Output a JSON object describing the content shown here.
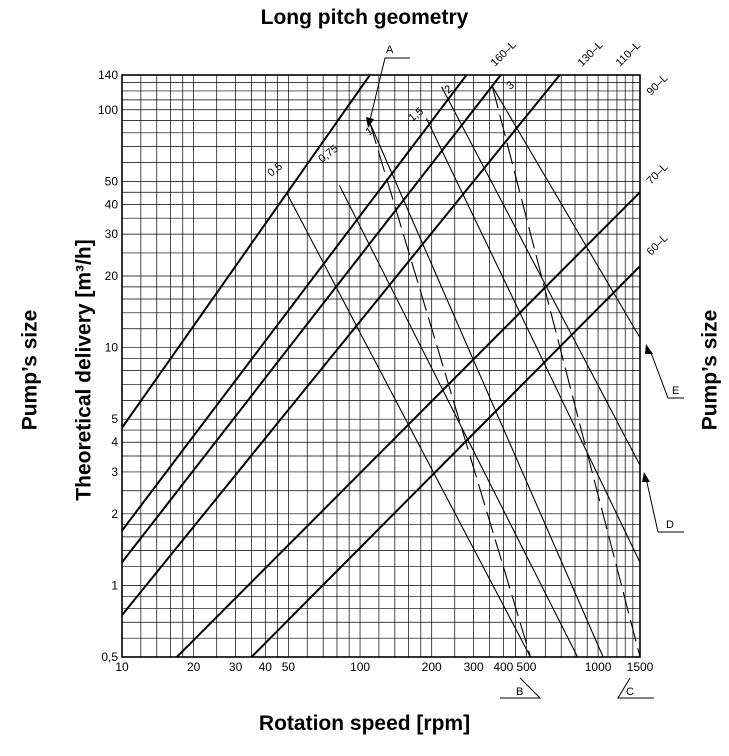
{
  "chart_data": {
    "type": "line",
    "title": "Long pitch geometry",
    "xlabel": "Rotation speed [rpm]",
    "ylabel": "Theoretical delivery [m³/h]",
    "side_label_left": "Pump’s size",
    "side_label_right": "Pump’s size",
    "x_scale": "log",
    "y_scale": "log",
    "xlim": [
      10,
      1500
    ],
    "ylim": [
      0.5,
      140
    ],
    "grid": true,
    "x_ticks": [
      {
        "value": 10,
        "label": "10"
      },
      {
        "value": 20,
        "label": "20"
      },
      {
        "value": 30,
        "label": "30"
      },
      {
        "value": 40,
        "label": "40"
      },
      {
        "value": 50,
        "label": "50"
      },
      {
        "value": 100,
        "label": "100"
      },
      {
        "value": 200,
        "label": "200"
      },
      {
        "value": 300,
        "label": "300"
      },
      {
        "value": 400,
        "label": "400"
      },
      {
        "value": 500,
        "label": "500"
      },
      {
        "value": 1000,
        "label": "1000"
      },
      {
        "value": 1500,
        "label": "1500"
      }
    ],
    "y_ticks": [
      {
        "value": 0.5,
        "label": "0,5"
      },
      {
        "value": 1,
        "label": "1"
      },
      {
        "value": 2,
        "label": "2"
      },
      {
        "value": 3,
        "label": "3"
      },
      {
        "value": 4,
        "label": "4"
      },
      {
        "value": 5,
        "label": "5"
      },
      {
        "value": 10,
        "label": "10"
      },
      {
        "value": 20,
        "label": "20"
      },
      {
        "value": 30,
        "label": "30"
      },
      {
        "value": 40,
        "label": "40"
      },
      {
        "value": 50,
        "label": "50"
      },
      {
        "value": 100,
        "label": "100"
      },
      {
        "value": 140,
        "label": "140"
      }
    ],
    "x_grid": [
      10,
      12,
      14,
      16,
      18,
      20,
      25,
      30,
      35,
      40,
      45,
      50,
      60,
      70,
      80,
      90,
      100,
      120,
      140,
      160,
      180,
      200,
      250,
      300,
      350,
      400,
      450,
      500,
      600,
      700,
      800,
      900,
      1000,
      1100,
      1200,
      1300,
      1400,
      1500
    ],
    "y_grid": [
      0.5,
      0.6,
      0.7,
      0.8,
      0.9,
      1,
      1.2,
      1.4,
      1.6,
      1.8,
      2,
      2.5,
      3,
      3.5,
      4,
      4.5,
      5,
      6,
      7,
      8,
      9,
      10,
      12,
      14,
      16,
      18,
      20,
      25,
      30,
      35,
      40,
      45,
      50,
      60,
      70,
      80,
      90,
      100,
      110,
      120,
      130,
      140
    ],
    "series": [
      {
        "name": "160–L",
        "points": [
          [
            10,
            4.6
          ],
          [
            110,
            140
          ]
        ]
      },
      {
        "name": "130–L",
        "points": [
          [
            10,
            1.7
          ],
          [
            280,
            140
          ]
        ]
      },
      {
        "name": "110–L",
        "points": [
          [
            10,
            1.25
          ],
          [
            390,
            140
          ]
        ]
      },
      {
        "name": "90–L",
        "points": [
          [
            10,
            0.75
          ],
          [
            690,
            140
          ]
        ]
      },
      {
        "name": "70–L",
        "points": [
          [
            17,
            0.5
          ],
          [
            1500,
            45
          ]
        ]
      },
      {
        "name": "60–L",
        "points": [
          [
            35,
            0.5
          ],
          [
            1500,
            22
          ]
        ]
      }
    ],
    "viscosity_lines": [
      {
        "name": "0,5",
        "points": [
          [
            49,
            45
          ],
          [
            520,
            0.5
          ]
        ]
      },
      {
        "name": "0,75",
        "points": [
          [
            82,
            48
          ],
          [
            820,
            0.5
          ]
        ]
      },
      {
        "name": "1",
        "points": [
          [
            110,
            88
          ],
          [
            1050,
            0.5
          ]
        ]
      },
      {
        "name": "1,5",
        "points": [
          [
            190,
            92
          ],
          [
            1500,
            1.25
          ]
        ]
      },
      {
        "name": "2",
        "points": [
          [
            220,
            125
          ],
          [
            1500,
            3.2
          ]
        ]
      },
      {
        "name": "3",
        "points": [
          [
            360,
            125
          ],
          [
            1500,
            11
          ]
        ]
      }
    ],
    "dashed_lines": [
      {
        "points": [
          [
            110,
            88
          ],
          [
            520,
            0.5
          ]
        ]
      },
      {
        "points": [
          [
            360,
            125
          ],
          [
            1500,
            0.5
          ]
        ]
      }
    ],
    "markers": [
      "A",
      "B",
      "C",
      "D",
      "E"
    ]
  }
}
